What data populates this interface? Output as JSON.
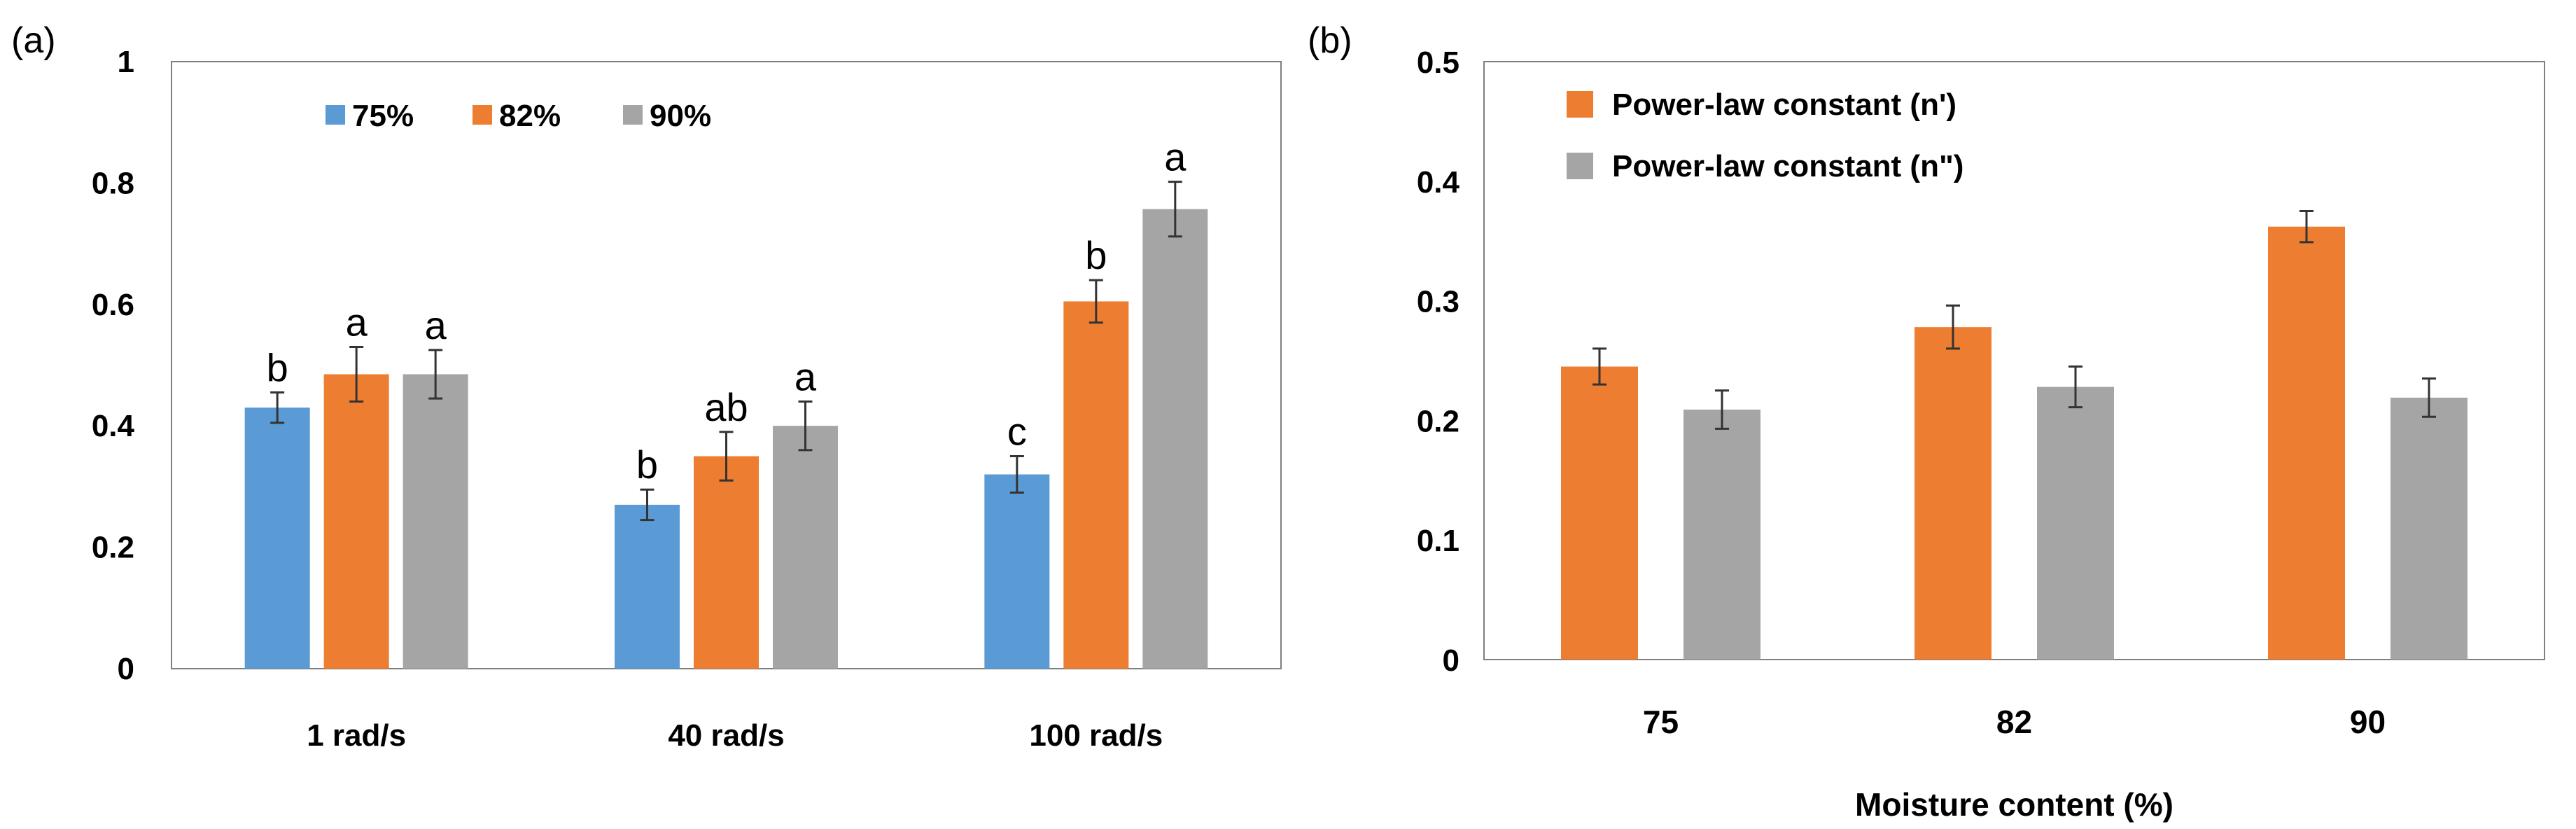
{
  "chart_data": [
    {
      "panel": "(a)",
      "type": "bar",
      "categories": [
        "1 rad/s",
        "40 rad/s",
        "100 rad/s"
      ],
      "series": [
        {
          "name": "75%",
          "color": "#5b9bd5",
          "values": [
            0.43,
            0.27,
            0.32
          ],
          "errors": [
            0.025,
            0.025,
            0.03
          ],
          "labels": [
            "b",
            "b",
            "c"
          ]
        },
        {
          "name": "82%",
          "color": "#ed7d31",
          "values": [
            0.485,
            0.35,
            0.605
          ],
          "errors": [
            0.045,
            0.04,
            0.035
          ],
          "labels": [
            "a",
            "ab",
            "b"
          ]
        },
        {
          "name": "90%",
          "color": "#a5a5a5",
          "values": [
            0.485,
            0.4,
            0.757
          ],
          "errors": [
            0.04,
            0.04,
            0.045
          ],
          "labels": [
            "a",
            "a",
            "a"
          ]
        }
      ],
      "yticks": [
        "0",
        "0.2",
        "0.4",
        "0.6",
        "0.8",
        "1"
      ],
      "ylim": [
        0,
        1
      ],
      "legend_position": "top",
      "xlabel": "",
      "ylabel": ""
    },
    {
      "panel": "(b)",
      "type": "bar",
      "categories": [
        "75",
        "82",
        "90"
      ],
      "series": [
        {
          "name": "Power-law constant (n')",
          "color": "#ed7d31",
          "values": [
            0.245,
            0.278,
            0.362
          ],
          "errors": [
            0.015,
            0.018,
            0.013
          ]
        },
        {
          "name": "Power-law constant (n\")",
          "color": "#a5a5a5",
          "values": [
            0.209,
            0.228,
            0.219
          ],
          "errors": [
            0.016,
            0.017,
            0.016
          ]
        }
      ],
      "yticks": [
        "0",
        "0.1",
        "0.2",
        "0.3",
        "0.4",
        "0.5"
      ],
      "ylim": [
        0,
        0.5
      ],
      "legend_position": "top-left",
      "xlabel": "Moisture content (%)",
      "ylabel": ""
    }
  ]
}
